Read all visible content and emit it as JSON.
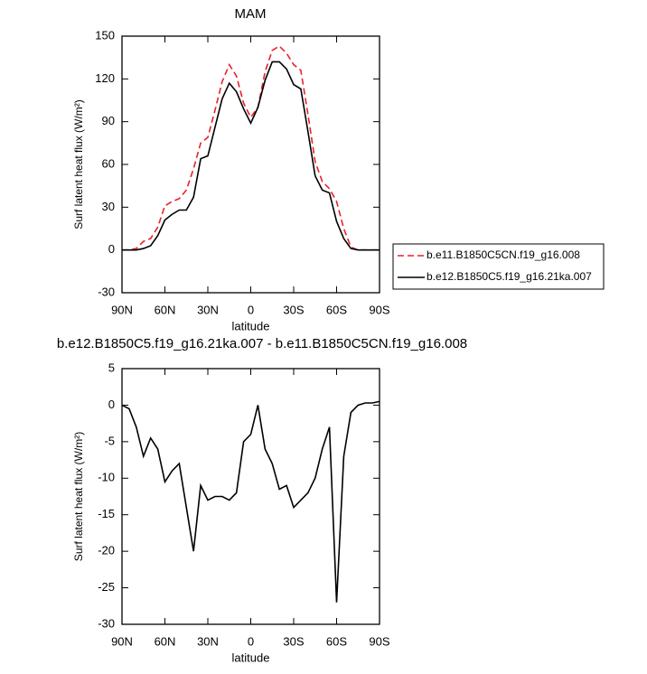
{
  "chart_data": [
    {
      "type": "line",
      "title": "MAM",
      "xlabel": "latitude",
      "ylabel": "Surf latent heat flux (W/m²)",
      "x": [
        90,
        85,
        80,
        75,
        70,
        65,
        60,
        55,
        50,
        45,
        40,
        35,
        30,
        25,
        20,
        15,
        10,
        5,
        0,
        -5,
        -10,
        -15,
        -20,
        -25,
        -30,
        -35,
        -40,
        -45,
        -50,
        -55,
        -60,
        -65,
        -70,
        -75,
        -80,
        -85,
        -90
      ],
      "series": [
        {
          "name": "b.e11.B1850C5CN.f19_g16.008",
          "color": "#e8212a",
          "line_style": "dashed",
          "values": [
            0,
            0,
            1,
            6,
            8,
            16,
            31,
            34,
            36,
            42,
            57,
            75,
            79,
            98,
            118,
            130,
            122,
            103,
            93,
            100,
            125,
            140,
            143,
            138,
            130,
            126,
            95,
            62,
            48,
            43,
            34,
            15,
            2,
            0,
            0,
            0,
            0
          ]
        },
        {
          "name": "b.e12.B1850C5.f19_g16.21ka.007",
          "color": "#000000",
          "line_style": "solid",
          "values": [
            0,
            0,
            0,
            1,
            3,
            10,
            21,
            25,
            28,
            28,
            37,
            64,
            66,
            86,
            106,
            117,
            111,
            99,
            89,
            100,
            119,
            132,
            132,
            127,
            116,
            113,
            83,
            52,
            42,
            40,
            20,
            8,
            1,
            0,
            0,
            0,
            0
          ]
        }
      ],
      "xlim": [
        90,
        -90
      ],
      "xticks": [
        {
          "value": 90,
          "label": "90N"
        },
        {
          "value": 60,
          "label": "60N"
        },
        {
          "value": 30,
          "label": "30N"
        },
        0,
        {
          "value": -30,
          "label": "30S"
        },
        {
          "value": -60,
          "label": "60S"
        },
        {
          "value": -90,
          "label": "90S"
        }
      ],
      "ylim": [
        -30,
        150
      ],
      "yticks": [
        -30,
        0,
        30,
        60,
        90,
        120,
        150
      ],
      "legend": "outside right"
    },
    {
      "type": "line",
      "title": "b.e12.B1850C5.f19_g16.21ka.007 - b.e11.B1850C5CN.f19_g16.008",
      "xlabel": "latitude",
      "ylabel": "Surf latent heat flux (W/m²)",
      "x": [
        90,
        85,
        80,
        75,
        70,
        65,
        60,
        55,
        50,
        45,
        40,
        35,
        30,
        25,
        20,
        15,
        10,
        5,
        0,
        -5,
        -10,
        -15,
        -20,
        -25,
        -30,
        -35,
        -40,
        -45,
        -50,
        -55,
        -60,
        -65,
        -70,
        -75,
        -80,
        -85,
        -90
      ],
      "series": [
        {
          "color": "#000000",
          "line_style": "solid",
          "values": [
            0,
            -0.5,
            -3,
            -7,
            -4.5,
            -6,
            -10.5,
            -9,
            -8,
            -14,
            -20,
            -11,
            -13,
            -12.5,
            -12.5,
            -13,
            -12,
            -5,
            -4,
            0,
            -6,
            -8,
            -11.5,
            -11,
            -14,
            -13,
            -12,
            -10,
            -6,
            -3,
            -27,
            -7,
            -1,
            0,
            0.3,
            0.3,
            0.5
          ]
        }
      ],
      "xlim": [
        90,
        -90
      ],
      "xticks": [
        {
          "value": 90,
          "label": "90N"
        },
        {
          "value": 60,
          "label": "60N"
        },
        {
          "value": 30,
          "label": "30N"
        },
        0,
        {
          "value": -30,
          "label": "30S"
        },
        {
          "value": -60,
          "label": "60S"
        },
        {
          "value": -90,
          "label": "90S"
        }
      ],
      "ylim": [
        -30,
        5
      ],
      "yticks": [
        -30,
        -25,
        -20,
        -15,
        -10,
        -5,
        0,
        5
      ]
    }
  ]
}
